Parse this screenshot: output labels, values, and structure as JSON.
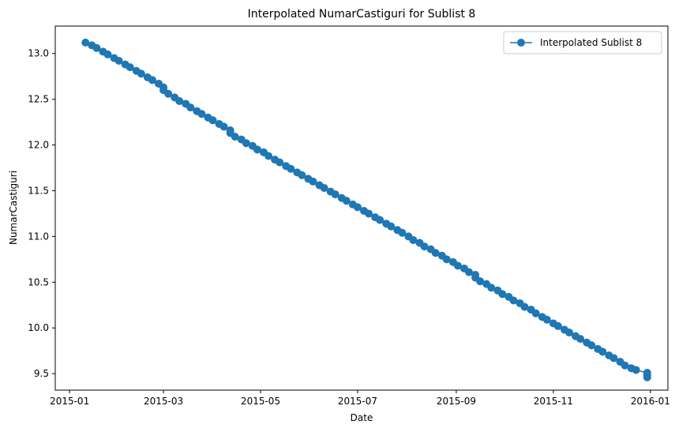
{
  "chart_data": {
    "type": "line",
    "title": "Interpolated NumarCastiguri for Sublist 8",
    "xlabel": "Date",
    "ylabel": "NumarCastiguri",
    "xlim": [
      "2014-12-23",
      "2016-01-12"
    ],
    "ylim": [
      9.32,
      13.3
    ],
    "x_ticks": [
      "2015-01-01",
      "2015-03-01",
      "2015-05-01",
      "2015-07-01",
      "2015-09-01",
      "2015-11-01",
      "2016-01-01"
    ],
    "x_tick_labels": [
      "2015-01",
      "2015-03",
      "2015-05",
      "2015-07",
      "2015-09",
      "2015-11",
      "2016-01"
    ],
    "y_ticks": [
      9.5,
      10.0,
      10.5,
      11.0,
      11.5,
      12.0,
      12.5,
      13.0
    ],
    "y_tick_labels": [
      "9.5",
      "10.0",
      "10.5",
      "11.0",
      "11.5",
      "12.0",
      "12.5",
      "13.0"
    ],
    "grid": false,
    "legend": {
      "position": "top-right",
      "entries": [
        "Interpolated Sublist 8"
      ]
    },
    "series": [
      {
        "name": "Interpolated Sublist 8",
        "color": "#1f77b4",
        "marker": "circle",
        "points": [
          [
            "2015-01-11",
            13.12
          ],
          [
            "2015-01-15",
            13.09
          ],
          [
            "2015-01-18",
            13.06
          ],
          [
            "2015-01-22",
            13.02
          ],
          [
            "2015-01-25",
            12.99
          ],
          [
            "2015-01-29",
            12.95
          ],
          [
            "2015-02-01",
            12.92
          ],
          [
            "2015-02-05",
            12.88
          ],
          [
            "2015-02-08",
            12.85
          ],
          [
            "2015-02-12",
            12.81
          ],
          [
            "2015-02-15",
            12.78
          ],
          [
            "2015-02-19",
            12.74
          ],
          [
            "2015-02-22",
            12.71
          ],
          [
            "2015-02-26",
            12.67
          ],
          [
            "2015-03-01",
            12.63
          ],
          [
            "2015-03-01",
            12.6
          ],
          [
            "2015-03-04",
            12.56
          ],
          [
            "2015-03-08",
            12.52
          ],
          [
            "2015-03-11",
            12.48
          ],
          [
            "2015-03-15",
            12.45
          ],
          [
            "2015-03-18",
            12.41
          ],
          [
            "2015-03-22",
            12.37
          ],
          [
            "2015-03-25",
            12.34
          ],
          [
            "2015-03-29",
            12.3
          ],
          [
            "2015-04-01",
            12.27
          ],
          [
            "2015-04-05",
            12.23
          ],
          [
            "2015-04-08",
            12.2
          ],
          [
            "2015-04-12",
            12.16
          ],
          [
            "2015-04-12",
            12.13
          ],
          [
            "2015-04-15",
            12.09
          ],
          [
            "2015-04-19",
            12.06
          ],
          [
            "2015-04-22",
            12.02
          ],
          [
            "2015-04-26",
            11.99
          ],
          [
            "2015-04-29",
            11.95
          ],
          [
            "2015-05-03",
            11.92
          ],
          [
            "2015-05-06",
            11.88
          ],
          [
            "2015-05-10",
            11.84
          ],
          [
            "2015-05-13",
            11.81
          ],
          [
            "2015-05-17",
            11.77
          ],
          [
            "2015-05-20",
            11.74
          ],
          [
            "2015-05-24",
            11.7
          ],
          [
            "2015-05-27",
            11.67
          ],
          [
            "2015-05-31",
            11.63
          ],
          [
            "2015-06-03",
            11.6
          ],
          [
            "2015-06-07",
            11.56
          ],
          [
            "2015-06-10",
            11.53
          ],
          [
            "2015-06-14",
            11.49
          ],
          [
            "2015-06-17",
            11.46
          ],
          [
            "2015-06-21",
            11.42
          ],
          [
            "2015-06-24",
            11.39
          ],
          [
            "2015-06-28",
            11.35
          ],
          [
            "2015-07-01",
            11.32
          ],
          [
            "2015-07-05",
            11.28
          ],
          [
            "2015-07-08",
            11.25
          ],
          [
            "2015-07-12",
            11.21
          ],
          [
            "2015-07-15",
            11.18
          ],
          [
            "2015-07-19",
            11.14
          ],
          [
            "2015-07-22",
            11.11
          ],
          [
            "2015-07-26",
            11.07
          ],
          [
            "2015-07-29",
            11.04
          ],
          [
            "2015-08-02",
            11.0
          ],
          [
            "2015-08-05",
            10.96
          ],
          [
            "2015-08-09",
            10.93
          ],
          [
            "2015-08-12",
            10.89
          ],
          [
            "2015-08-16",
            10.86
          ],
          [
            "2015-08-19",
            10.82
          ],
          [
            "2015-08-23",
            10.79
          ],
          [
            "2015-08-26",
            10.75
          ],
          [
            "2015-08-30",
            10.72
          ],
          [
            "2015-09-02",
            10.68
          ],
          [
            "2015-09-06",
            10.65
          ],
          [
            "2015-09-09",
            10.61
          ],
          [
            "2015-09-13",
            10.58
          ],
          [
            "2015-09-13",
            10.55
          ],
          [
            "2015-09-16",
            10.51
          ],
          [
            "2015-09-20",
            10.48
          ],
          [
            "2015-09-23",
            10.44
          ],
          [
            "2015-09-27",
            10.41
          ],
          [
            "2015-09-30",
            10.37
          ],
          [
            "2015-10-04",
            10.34
          ],
          [
            "2015-10-07",
            10.3
          ],
          [
            "2015-10-11",
            10.27
          ],
          [
            "2015-10-14",
            10.23
          ],
          [
            "2015-10-18",
            10.2
          ],
          [
            "2015-10-21",
            10.16
          ],
          [
            "2015-10-25",
            10.12
          ],
          [
            "2015-10-28",
            10.09
          ],
          [
            "2015-11-01",
            10.05
          ],
          [
            "2015-11-04",
            10.02
          ],
          [
            "2015-11-08",
            9.98
          ],
          [
            "2015-11-11",
            9.95
          ],
          [
            "2015-11-15",
            9.91
          ],
          [
            "2015-11-18",
            9.88
          ],
          [
            "2015-11-22",
            9.84
          ],
          [
            "2015-11-25",
            9.81
          ],
          [
            "2015-11-29",
            9.77
          ],
          [
            "2015-12-02",
            9.74
          ],
          [
            "2015-12-06",
            9.7
          ],
          [
            "2015-12-09",
            9.67
          ],
          [
            "2015-12-13",
            9.63
          ],
          [
            "2015-12-16",
            9.59
          ],
          [
            "2015-12-20",
            9.56
          ],
          [
            "2015-12-23",
            9.54
          ],
          [
            "2015-12-30",
            9.51
          ],
          [
            "2015-12-30",
            9.48
          ],
          [
            "2015-12-30",
            9.46
          ]
        ]
      }
    ]
  }
}
